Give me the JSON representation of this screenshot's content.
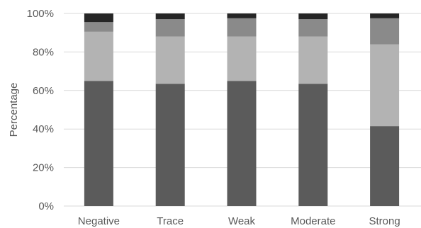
{
  "chart_data": {
    "type": "bar",
    "stacked": true,
    "normalized": true,
    "categories": [
      "Negative",
      "Trace",
      "Weak",
      "Moderate",
      "Strong"
    ],
    "series": [
      {
        "color": "#5b5b5b",
        "values": [
          65,
          63.5,
          65,
          63.5,
          41.5
        ]
      },
      {
        "color": "#b3b3b3",
        "values": [
          25.5,
          24.5,
          23,
          24.5,
          42.5
        ]
      },
      {
        "color": "#8a8a8a",
        "values": [
          5,
          9,
          9.5,
          9,
          13.5
        ]
      },
      {
        "color": "#262626",
        "values": [
          4.5,
          3,
          2.5,
          3,
          2.5
        ]
      }
    ],
    "ylabel": "Percentage",
    "yticks": [
      "0%",
      "20%",
      "40%",
      "60%",
      "80%",
      "100%"
    ],
    "ylim": [
      0,
      100
    ],
    "grid": true,
    "legend": "none"
  }
}
